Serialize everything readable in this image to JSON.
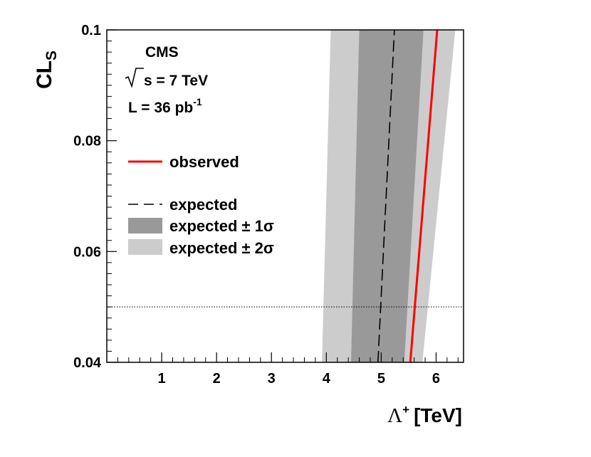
{
  "chart_data": {
    "type": "line",
    "xlabel_symbol": "Λ",
    "xlabel_sup": "+",
    "xlabel_unit": "[TeV]",
    "ylabel_main": "CL",
    "ylabel_sub": "S",
    "xlim": [
      0,
      6.5
    ],
    "ylim": [
      0.04,
      0.1
    ],
    "x_ticks": [
      1,
      2,
      3,
      4,
      5,
      6
    ],
    "y_ticks": [
      0.04,
      0.06,
      0.08,
      0.1
    ],
    "y_tick_labels": [
      "0.04",
      "0.06",
      "0.08",
      "0.1"
    ],
    "reference_line": {
      "y": 0.05,
      "style": "dotted"
    },
    "series": [
      {
        "name": "observed",
        "style": "solid",
        "color": "#ff0000",
        "x": [
          5.53,
          6.02
        ],
        "y": [
          0.04,
          0.1
        ]
      },
      {
        "name": "expected",
        "style": "dashed",
        "color": "#000000",
        "x": [
          4.94,
          5.24
        ],
        "y": [
          0.04,
          0.1
        ]
      }
    ],
    "bands": [
      {
        "name": "expected ± 2σ",
        "color": "#cccccc",
        "x_low": [
          3.92,
          4.08
        ],
        "x_high": [
          5.75,
          6.35
        ],
        "y": [
          0.04,
          0.1
        ]
      },
      {
        "name": "expected ± 1σ",
        "color": "#999999",
        "x_low": [
          4.45,
          4.6
        ],
        "x_high": [
          5.42,
          5.77
        ],
        "y": [
          0.04,
          0.1
        ]
      }
    ],
    "info": {
      "experiment": "CMS",
      "energy": "s = 7 TeV",
      "lumi_main": "L = 36 pb",
      "lumi_sup": "-1"
    },
    "legend": {
      "placement": "left",
      "observed": "observed",
      "expected": "expected",
      "one_sigma": "expected ± 1σ",
      "two_sigma": "expected ± 2σ"
    }
  }
}
